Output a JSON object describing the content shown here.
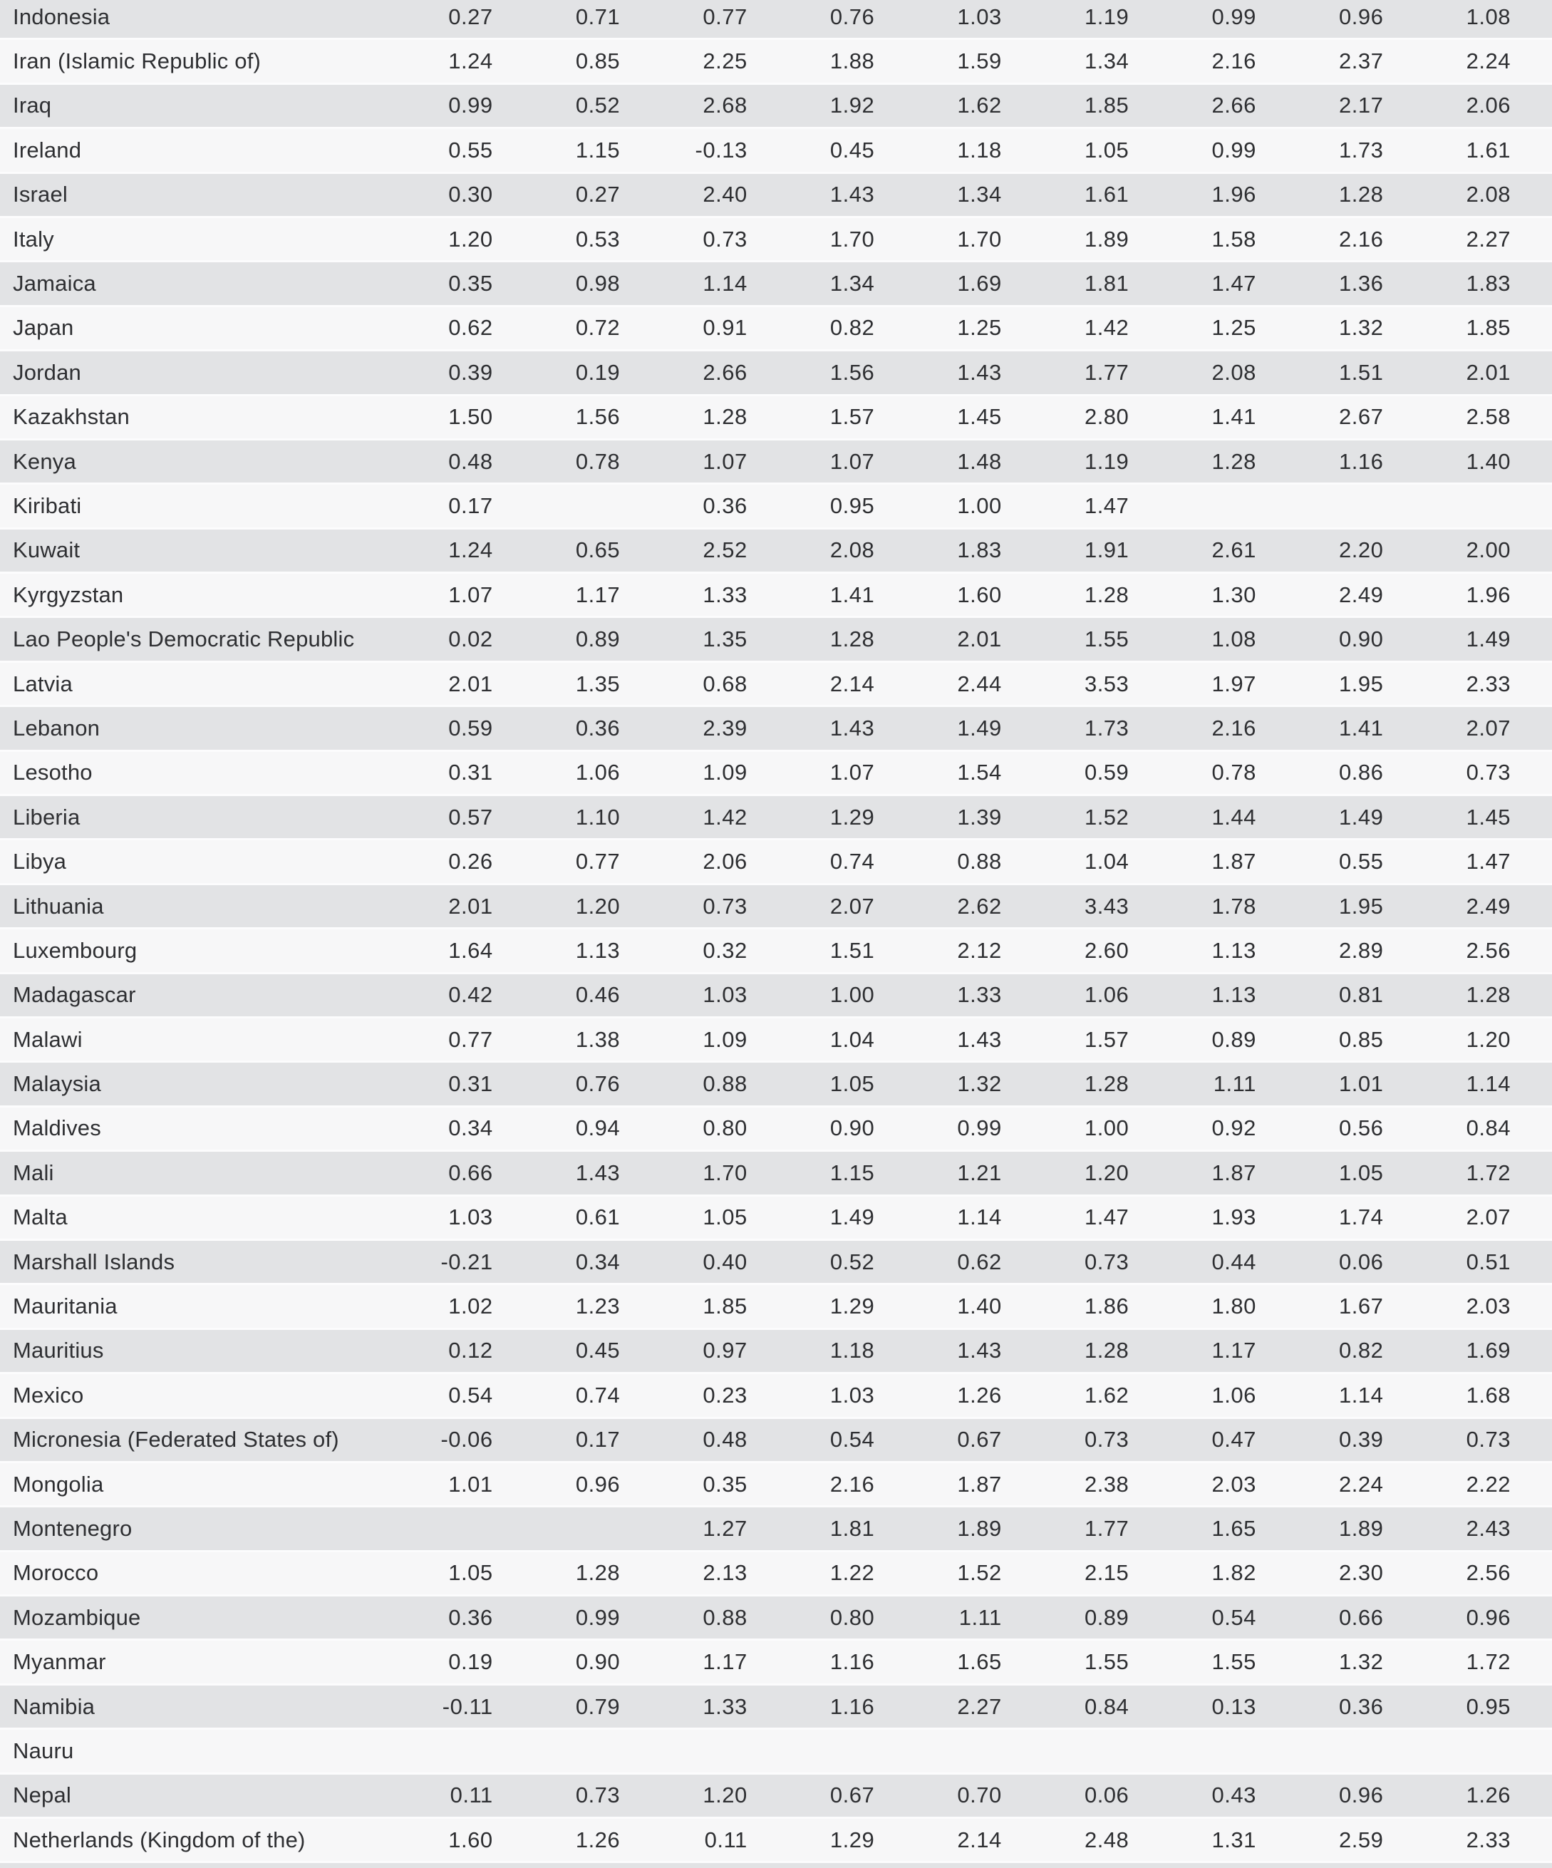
{
  "table": {
    "description": "Country data table, 9 numeric value columns per country, headers not visible in screenshot",
    "value_column_count": 9,
    "rows": [
      {
        "country": "Indonesia",
        "values": [
          "0.27",
          "0.71",
          "0.77",
          "0.76",
          "1.03",
          "1.19",
          "0.99",
          "0.96",
          "1.08"
        ]
      },
      {
        "country": "Iran (Islamic Republic of)",
        "values": [
          "1.24",
          "0.85",
          "2.25",
          "1.88",
          "1.59",
          "1.34",
          "2.16",
          "2.37",
          "2.24"
        ]
      },
      {
        "country": "Iraq",
        "values": [
          "0.99",
          "0.52",
          "2.68",
          "1.92",
          "1.62",
          "1.85",
          "2.66",
          "2.17",
          "2.06"
        ]
      },
      {
        "country": "Ireland",
        "values": [
          "0.55",
          "1.15",
          "-0.13",
          "0.45",
          "1.18",
          "1.05",
          "0.99",
          "1.73",
          "1.61"
        ]
      },
      {
        "country": "Israel",
        "values": [
          "0.30",
          "0.27",
          "2.40",
          "1.43",
          "1.34",
          "1.61",
          "1.96",
          "1.28",
          "2.08"
        ]
      },
      {
        "country": "Italy",
        "values": [
          "1.20",
          "0.53",
          "0.73",
          "1.70",
          "1.70",
          "1.89",
          "1.58",
          "2.16",
          "2.27"
        ]
      },
      {
        "country": "Jamaica",
        "values": [
          "0.35",
          "0.98",
          "1.14",
          "1.34",
          "1.69",
          "1.81",
          "1.47",
          "1.36",
          "1.83"
        ]
      },
      {
        "country": "Japan",
        "values": [
          "0.62",
          "0.72",
          "0.91",
          "0.82",
          "1.25",
          "1.42",
          "1.25",
          "1.32",
          "1.85"
        ]
      },
      {
        "country": "Jordan",
        "values": [
          "0.39",
          "0.19",
          "2.66",
          "1.56",
          "1.43",
          "1.77",
          "2.08",
          "1.51",
          "2.01"
        ]
      },
      {
        "country": "Kazakhstan",
        "values": [
          "1.50",
          "1.56",
          "1.28",
          "1.57",
          "1.45",
          "2.80",
          "1.41",
          "2.67",
          "2.58"
        ]
      },
      {
        "country": "Kenya",
        "values": [
          "0.48",
          "0.78",
          "1.07",
          "1.07",
          "1.48",
          "1.19",
          "1.28",
          "1.16",
          "1.40"
        ]
      },
      {
        "country": "Kiribati",
        "values": [
          "0.17",
          "",
          "0.36",
          "0.95",
          "1.00",
          "1.47",
          "",
          "",
          ""
        ]
      },
      {
        "country": "Kuwait",
        "values": [
          "1.24",
          "0.65",
          "2.52",
          "2.08",
          "1.83",
          "1.91",
          "2.61",
          "2.20",
          "2.00"
        ]
      },
      {
        "country": "Kyrgyzstan",
        "values": [
          "1.07",
          "1.17",
          "1.33",
          "1.41",
          "1.60",
          "1.28",
          "1.30",
          "2.49",
          "1.96"
        ]
      },
      {
        "country": "Lao People's Democratic Republic",
        "values": [
          "0.02",
          "0.89",
          "1.35",
          "1.28",
          "2.01",
          "1.55",
          "1.08",
          "0.90",
          "1.49"
        ]
      },
      {
        "country": "Latvia",
        "values": [
          "2.01",
          "1.35",
          "0.68",
          "2.14",
          "2.44",
          "3.53",
          "1.97",
          "1.95",
          "2.33"
        ]
      },
      {
        "country": "Lebanon",
        "values": [
          "0.59",
          "0.36",
          "2.39",
          "1.43",
          "1.49",
          "1.73",
          "2.16",
          "1.41",
          "2.07"
        ]
      },
      {
        "country": "Lesotho",
        "values": [
          "0.31",
          "1.06",
          "1.09",
          "1.07",
          "1.54",
          "0.59",
          "0.78",
          "0.86",
          "0.73"
        ]
      },
      {
        "country": "Liberia",
        "values": [
          "0.57",
          "1.10",
          "1.42",
          "1.29",
          "1.39",
          "1.52",
          "1.44",
          "1.49",
          "1.45"
        ]
      },
      {
        "country": "Libya",
        "values": [
          "0.26",
          "0.77",
          "2.06",
          "0.74",
          "0.88",
          "1.04",
          "1.87",
          "0.55",
          "1.47"
        ]
      },
      {
        "country": "Lithuania",
        "values": [
          "2.01",
          "1.20",
          "0.73",
          "2.07",
          "2.62",
          "3.43",
          "1.78",
          "1.95",
          "2.49"
        ]
      },
      {
        "country": "Luxembourg",
        "values": [
          "1.64",
          "1.13",
          "0.32",
          "1.51",
          "2.12",
          "2.60",
          "1.13",
          "2.89",
          "2.56"
        ]
      },
      {
        "country": "Madagascar",
        "values": [
          "0.42",
          "0.46",
          "1.03",
          "1.00",
          "1.33",
          "1.06",
          "1.13",
          "0.81",
          "1.28"
        ]
      },
      {
        "country": "Malawi",
        "values": [
          "0.77",
          "1.38",
          "1.09",
          "1.04",
          "1.43",
          "1.57",
          "0.89",
          "0.85",
          "1.20"
        ]
      },
      {
        "country": "Malaysia",
        "values": [
          "0.31",
          "0.76",
          "0.88",
          "1.05",
          "1.32",
          "1.28",
          "1.11",
          "1.01",
          "1.14"
        ]
      },
      {
        "country": "Maldives",
        "values": [
          "0.34",
          "0.94",
          "0.80",
          "0.90",
          "0.99",
          "1.00",
          "0.92",
          "0.56",
          "0.84"
        ]
      },
      {
        "country": "Mali",
        "values": [
          "0.66",
          "1.43",
          "1.70",
          "1.15",
          "1.21",
          "1.20",
          "1.87",
          "1.05",
          "1.72"
        ]
      },
      {
        "country": "Malta",
        "values": [
          "1.03",
          "0.61",
          "1.05",
          "1.49",
          "1.14",
          "1.47",
          "1.93",
          "1.74",
          "2.07"
        ]
      },
      {
        "country": "Marshall Islands",
        "values": [
          "-0.21",
          "0.34",
          "0.40",
          "0.52",
          "0.62",
          "0.73",
          "0.44",
          "0.06",
          "0.51"
        ]
      },
      {
        "country": "Mauritania",
        "values": [
          "1.02",
          "1.23",
          "1.85",
          "1.29",
          "1.40",
          "1.86",
          "1.80",
          "1.67",
          "2.03"
        ]
      },
      {
        "country": "Mauritius",
        "values": [
          "0.12",
          "0.45",
          "0.97",
          "1.18",
          "1.43",
          "1.28",
          "1.17",
          "0.82",
          "1.69"
        ]
      },
      {
        "country": "Mexico",
        "values": [
          "0.54",
          "0.74",
          "0.23",
          "1.03",
          "1.26",
          "1.62",
          "1.06",
          "1.14",
          "1.68"
        ]
      },
      {
        "country": "Micronesia (Federated States of)",
        "values": [
          "-0.06",
          "0.17",
          "0.48",
          "0.54",
          "0.67",
          "0.73",
          "0.47",
          "0.39",
          "0.73"
        ]
      },
      {
        "country": "Mongolia",
        "values": [
          "1.01",
          "0.96",
          "0.35",
          "2.16",
          "1.87",
          "2.38",
          "2.03",
          "2.24",
          "2.22"
        ]
      },
      {
        "country": "Montenegro",
        "values": [
          "",
          "",
          "1.27",
          "1.81",
          "1.89",
          "1.77",
          "1.65",
          "1.89",
          "2.43"
        ]
      },
      {
        "country": "Morocco",
        "values": [
          "1.05",
          "1.28",
          "2.13",
          "1.22",
          "1.52",
          "2.15",
          "1.82",
          "2.30",
          "2.56"
        ]
      },
      {
        "country": "Mozambique",
        "values": [
          "0.36",
          "0.99",
          "0.88",
          "0.80",
          "1.11",
          "0.89",
          "0.54",
          "0.66",
          "0.96"
        ]
      },
      {
        "country": "Myanmar",
        "values": [
          "0.19",
          "0.90",
          "1.17",
          "1.16",
          "1.65",
          "1.55",
          "1.55",
          "1.32",
          "1.72"
        ]
      },
      {
        "country": "Namibia",
        "values": [
          "-0.11",
          "0.79",
          "1.33",
          "1.16",
          "2.27",
          "0.84",
          "0.13",
          "0.36",
          "0.95"
        ]
      },
      {
        "country": "Nauru",
        "values": [
          "",
          "",
          "",
          "",
          "",
          "",
          "",
          "",
          ""
        ]
      },
      {
        "country": "Nepal",
        "values": [
          "0.11",
          "0.73",
          "1.20",
          "0.67",
          "0.70",
          "0.06",
          "0.43",
          "0.96",
          "1.26"
        ]
      },
      {
        "country": "Netherlands (Kingdom of the)",
        "values": [
          "1.60",
          "1.26",
          "0.11",
          "1.29",
          "2.14",
          "2.48",
          "1.31",
          "2.59",
          "2.33"
        ]
      }
    ]
  },
  "colors": {
    "row_shaded": "#e2e3e5",
    "row_plain": "#f7f7f8",
    "row_separator": "#fcfcfd",
    "text": "#2e2f32"
  }
}
